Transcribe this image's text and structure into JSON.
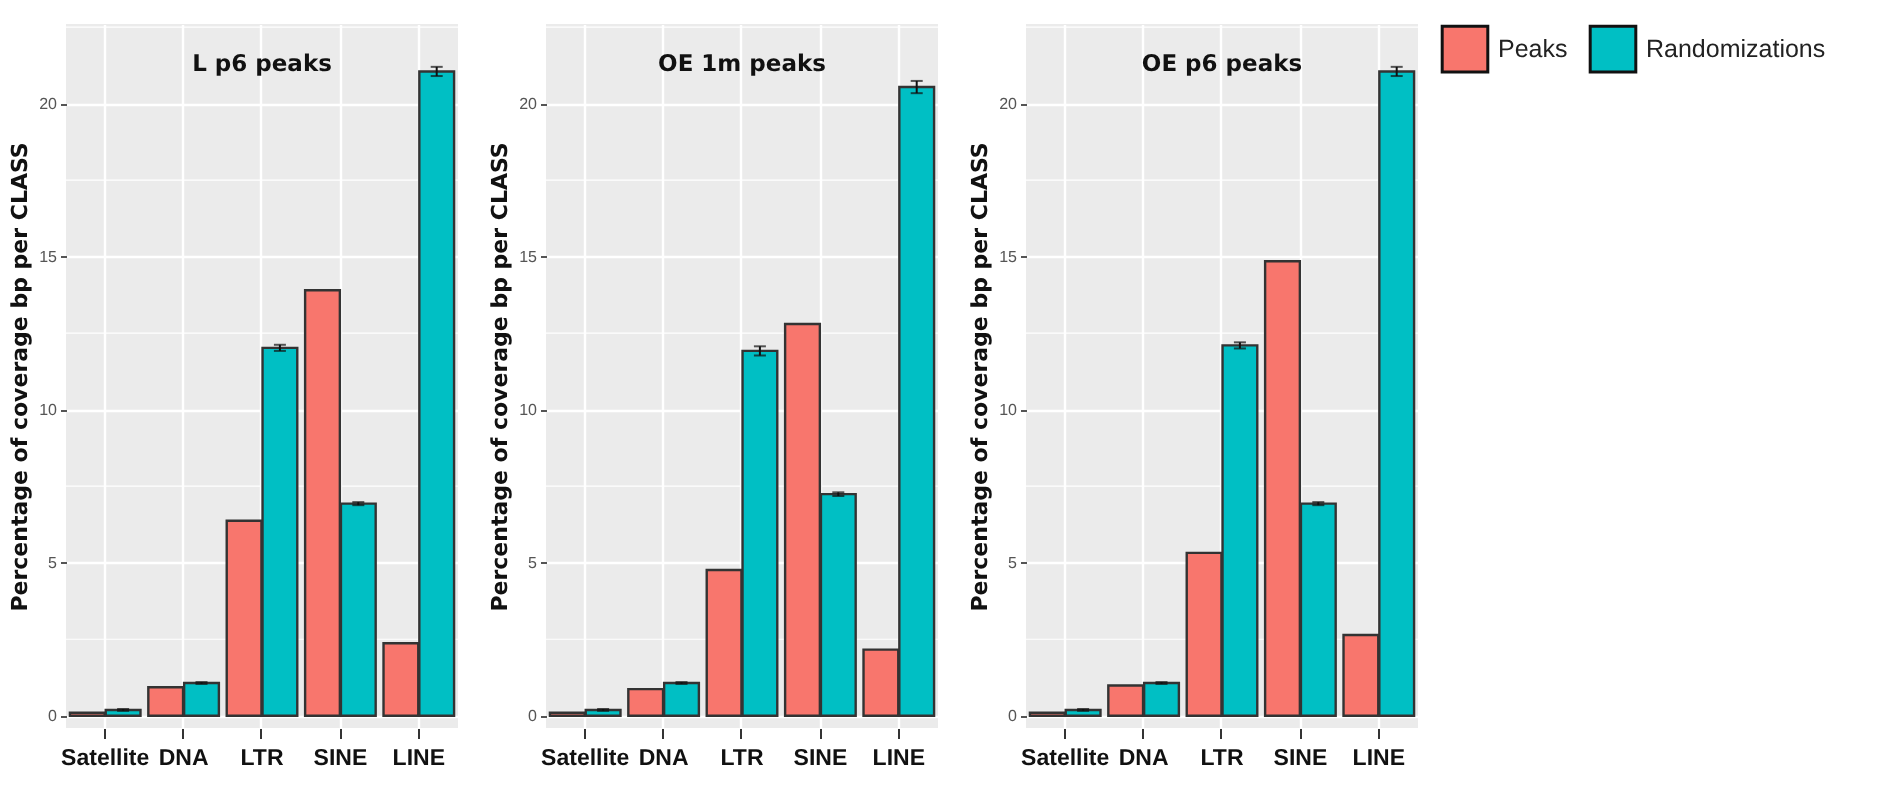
{
  "chart_data": [
    {
      "type": "bar",
      "title": "L p6 peaks",
      "ylabel": "Percentage of coverage bp per CLASS",
      "categories": [
        "Satellite",
        "DNA",
        "LTR",
        "SINE",
        "LINE"
      ],
      "series": [
        {
          "name": "Peaks",
          "color": "#f8766d",
          "values": [
            0.1,
            0.93,
            6.37,
            13.9,
            2.37
          ]
        },
        {
          "name": "Randomizations",
          "color": "#00bfc4",
          "values": [
            0.19,
            1.07,
            12.02,
            6.93,
            21.05
          ],
          "errors": [
            0.03,
            0.03,
            0.1,
            0.05,
            0.15
          ]
        }
      ],
      "ylim": [
        -0.4,
        22.6
      ],
      "yticks": [
        0,
        5,
        10,
        15,
        20
      ],
      "grid": true,
      "legend": "top right"
    },
    {
      "type": "bar",
      "title": "OE 1m peaks",
      "ylabel": "Percentage of coverage bp per CLASS",
      "categories": [
        "Satellite",
        "DNA",
        "LTR",
        "SINE",
        "LINE"
      ],
      "series": [
        {
          "name": "Peaks",
          "color": "#f8766d",
          "values": [
            0.1,
            0.87,
            4.76,
            12.8,
            2.16
          ]
        },
        {
          "name": "Randomizations",
          "color": "#00bfc4",
          "values": [
            0.19,
            1.07,
            11.92,
            7.24,
            20.54
          ],
          "errors": [
            0.03,
            0.03,
            0.15,
            0.06,
            0.2
          ]
        }
      ],
      "ylim": [
        -0.4,
        22.6
      ],
      "yticks": [
        0,
        5,
        10,
        15,
        20
      ],
      "grid": true,
      "legend": "top right"
    },
    {
      "type": "bar",
      "title": "OE p6 peaks",
      "ylabel": "Percentage of coverage bp per CLASS",
      "categories": [
        "Satellite",
        "DNA",
        "LTR",
        "SINE",
        "LINE"
      ],
      "series": [
        {
          "name": "Peaks",
          "color": "#f8766d",
          "values": [
            0.1,
            0.99,
            5.32,
            14.85,
            2.64
          ]
        },
        {
          "name": "Randomizations",
          "color": "#00bfc4",
          "values": [
            0.19,
            1.07,
            12.1,
            6.93,
            21.05
          ],
          "errors": [
            0.03,
            0.03,
            0.1,
            0.05,
            0.15
          ]
        }
      ],
      "ylim": [
        -0.4,
        22.6
      ],
      "yticks": [
        0,
        5,
        10,
        15,
        20
      ],
      "grid": true,
      "legend": "top right"
    }
  ]
}
